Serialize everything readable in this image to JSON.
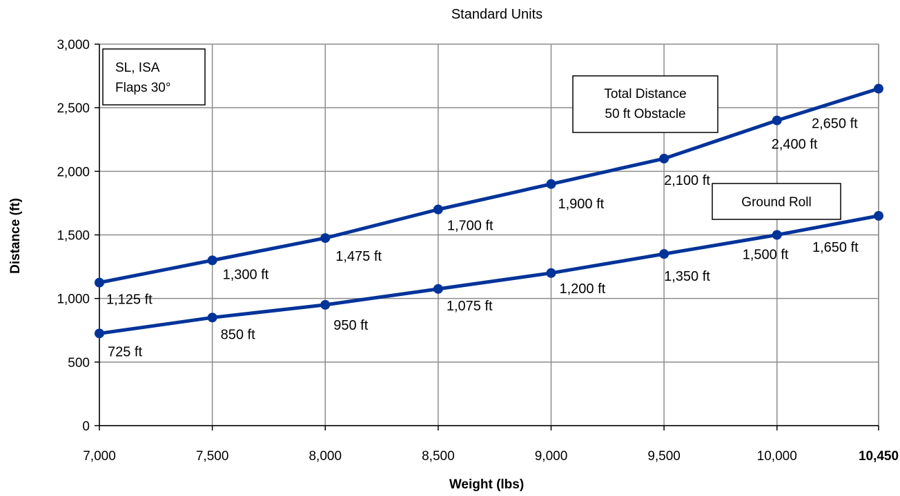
{
  "chart_data": {
    "type": "line",
    "title": "Standard Units",
    "xlabel": "Weight (lbs)",
    "ylabel": "Distance (ft)",
    "x": [
      7000,
      7500,
      8000,
      8500,
      9000,
      9500,
      10000,
      10450
    ],
    "xlim": [
      7000,
      10450
    ],
    "ylim": [
      0,
      3000
    ],
    "x_ticks": [
      7000,
      7500,
      8000,
      8500,
      9000,
      9500,
      10000,
      10450
    ],
    "x_tick_labels": [
      "7,000",
      "7,500",
      "8,000",
      "8,500",
      "9,000",
      "9,500",
      "10,000",
      "10,450"
    ],
    "x_tick_bold": [
      false,
      false,
      false,
      false,
      false,
      false,
      false,
      true
    ],
    "y_ticks": [
      0,
      500,
      1000,
      1500,
      2000,
      2500,
      3000
    ],
    "y_tick_labels": [
      "0",
      "500",
      "1,000",
      "1,500",
      "2,000",
      "2,500",
      "3,000"
    ],
    "grid": true,
    "series": [
      {
        "name": "Total Distance 50 ft Obstacle",
        "values": [
          1125,
          1300,
          1475,
          1700,
          1900,
          2100,
          2400,
          2650
        ],
        "labels": [
          "1,125 ft",
          "1,300 ft",
          "1,475 ft",
          "1,700 ft",
          "1,900 ft",
          "2,100 ft",
          "2,400 ft",
          "2,650 ft"
        ],
        "color": "#003399"
      },
      {
        "name": "Ground Roll",
        "values": [
          725,
          850,
          950,
          1075,
          1200,
          1350,
          1500,
          1650
        ],
        "labels": [
          "725 ft",
          "850 ft",
          "950 ft",
          "1,075 ft",
          "1,200 ft",
          "1,350 ft",
          "1,500 ft",
          "1,650 ft"
        ],
        "color": "#003399"
      }
    ],
    "annotations": {
      "conditions": [
        "SL, ISA",
        "Flaps 30°"
      ],
      "total_distance": [
        "Total Distance",
        "50 ft Obstacle"
      ],
      "ground_roll": [
        "Ground Roll"
      ]
    }
  }
}
